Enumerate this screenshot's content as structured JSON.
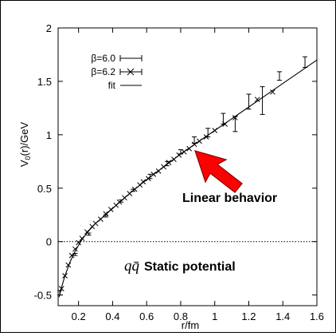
{
  "chart_data": {
    "type": "scatter",
    "xlabel": "r/fm",
    "ylabel": "V",
    "ylabel_sub": "0",
    "ylabel_rest": "(r)/GeV",
    "xlim": [
      0.08,
      1.6
    ],
    "ylim": [
      -0.6,
      2.0
    ],
    "x_ticks": [
      0.2,
      0.4,
      0.6,
      0.8,
      1.0,
      1.2,
      1.4,
      1.6
    ],
    "x_tick_labels": [
      "0.2",
      "0.4",
      "0.6",
      "0.8",
      "1",
      "1.2",
      "1.4",
      "1.6"
    ],
    "y_ticks": [
      -0.5,
      0,
      0.5,
      1,
      1.5,
      2
    ],
    "y_tick_labels": [
      "-0.5",
      "0",
      "0.5",
      "1",
      "1.5",
      "2"
    ],
    "zero_line": true,
    "legend_position": "top-left",
    "legend": [
      {
        "label": "β=6.0",
        "marker": "errorbar"
      },
      {
        "label": "β=6.2",
        "marker": "cross"
      },
      {
        "label": "fit",
        "marker": "line"
      }
    ],
    "series": [
      {
        "name": "β=6.0",
        "points": [
          {
            "x": 0.09,
            "y": -0.48,
            "err": 0.02
          },
          {
            "x": 0.18,
            "y": -0.12,
            "err": 0.01
          },
          {
            "x": 0.26,
            "y": 0.07,
            "err": 0.01
          },
          {
            "x": 0.36,
            "y": 0.24,
            "err": 0.01
          },
          {
            "x": 0.45,
            "y": 0.38,
            "err": 0.01
          },
          {
            "x": 0.52,
            "y": 0.48,
            "err": 0.01
          },
          {
            "x": 0.62,
            "y": 0.61,
            "err": 0.02
          },
          {
            "x": 0.72,
            "y": 0.73,
            "err": 0.02
          },
          {
            "x": 0.8,
            "y": 0.84,
            "err": 0.02
          },
          {
            "x": 0.88,
            "y": 0.95,
            "err": 0.03
          },
          {
            "x": 0.96,
            "y": 1.02,
            "err": 0.04
          },
          {
            "x": 1.05,
            "y": 1.15,
            "err": 0.05
          },
          {
            "x": 1.12,
            "y": 1.1,
            "err": 0.07
          },
          {
            "x": 1.2,
            "y": 1.31,
            "err": 0.07
          },
          {
            "x": 1.28,
            "y": 1.32,
            "err": 0.13
          },
          {
            "x": 1.38,
            "y": 1.55,
            "err": 0.04
          },
          {
            "x": 1.53,
            "y": 1.68,
            "err": 0.05
          }
        ]
      },
      {
        "name": "β=6.2",
        "points": [
          {
            "x": 0.1,
            "y": -0.44
          },
          {
            "x": 0.12,
            "y": -0.32
          },
          {
            "x": 0.14,
            "y": -0.22
          },
          {
            "x": 0.16,
            "y": -0.13
          },
          {
            "x": 0.18,
            "y": -0.07
          },
          {
            "x": 0.2,
            "y": -0.01
          },
          {
            "x": 0.22,
            "y": 0.03
          },
          {
            "x": 0.25,
            "y": 0.09
          },
          {
            "x": 0.28,
            "y": 0.14
          },
          {
            "x": 0.3,
            "y": 0.17
          },
          {
            "x": 0.33,
            "y": 0.21
          },
          {
            "x": 0.36,
            "y": 0.26
          },
          {
            "x": 0.39,
            "y": 0.3
          },
          {
            "x": 0.42,
            "y": 0.34
          },
          {
            "x": 0.44,
            "y": 0.37
          },
          {
            "x": 0.47,
            "y": 0.41
          },
          {
            "x": 0.5,
            "y": 0.45
          },
          {
            "x": 0.53,
            "y": 0.49
          },
          {
            "x": 0.56,
            "y": 0.53
          },
          {
            "x": 0.58,
            "y": 0.56
          },
          {
            "x": 0.61,
            "y": 0.59
          },
          {
            "x": 0.64,
            "y": 0.63
          },
          {
            "x": 0.67,
            "y": 0.66
          },
          {
            "x": 0.7,
            "y": 0.7
          },
          {
            "x": 0.73,
            "y": 0.74
          },
          {
            "x": 0.76,
            "y": 0.77
          },
          {
            "x": 0.79,
            "y": 0.81
          },
          {
            "x": 0.82,
            "y": 0.84
          },
          {
            "x": 0.85,
            "y": 0.87
          },
          {
            "x": 0.88,
            "y": 0.91
          },
          {
            "x": 0.91,
            "y": 0.94
          },
          {
            "x": 0.95,
            "y": 0.98
          },
          {
            "x": 1.0,
            "y": 1.04
          },
          {
            "x": 1.06,
            "y": 1.1
          },
          {
            "x": 1.12,
            "y": 1.16
          },
          {
            "x": 1.25,
            "y": 1.33
          },
          {
            "x": 1.34,
            "y": 1.4
          }
        ]
      }
    ],
    "fit": [
      {
        "x": 0.085,
        "y": -0.52
      },
      {
        "x": 0.1,
        "y": -0.43
      },
      {
        "x": 0.12,
        "y": -0.32
      },
      {
        "x": 0.15,
        "y": -0.19
      },
      {
        "x": 0.18,
        "y": -0.09
      },
      {
        "x": 0.22,
        "y": 0.02
      },
      {
        "x": 0.26,
        "y": 0.1
      },
      {
        "x": 0.3,
        "y": 0.17
      },
      {
        "x": 0.35,
        "y": 0.24
      },
      {
        "x": 0.4,
        "y": 0.31
      },
      {
        "x": 0.45,
        "y": 0.38
      },
      {
        "x": 0.5,
        "y": 0.45
      },
      {
        "x": 0.6,
        "y": 0.58
      },
      {
        "x": 0.7,
        "y": 0.7
      },
      {
        "x": 0.8,
        "y": 0.82
      },
      {
        "x": 0.9,
        "y": 0.93
      },
      {
        "x": 1.0,
        "y": 1.04
      },
      {
        "x": 1.1,
        "y": 1.15
      },
      {
        "x": 1.2,
        "y": 1.26
      },
      {
        "x": 1.3,
        "y": 1.37
      },
      {
        "x": 1.4,
        "y": 1.48
      },
      {
        "x": 1.5,
        "y": 1.59
      },
      {
        "x": 1.6,
        "y": 1.7
      }
    ],
    "annotations": [
      {
        "text": "Linear behavior",
        "kind": "arrow-label",
        "arrow_color": "#ff0000"
      },
      {
        "text_math": "qq̄",
        "text": "Static potential",
        "kind": "label"
      }
    ]
  }
}
